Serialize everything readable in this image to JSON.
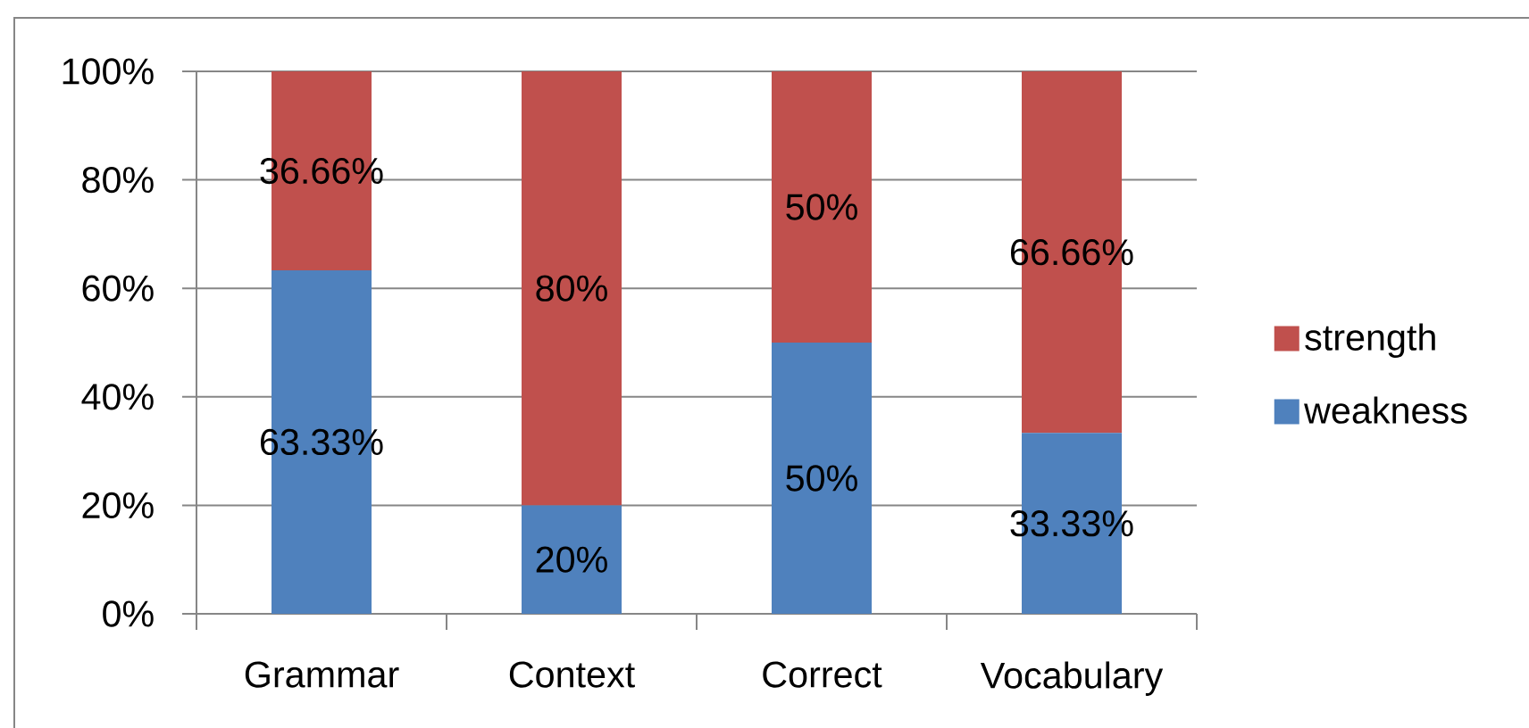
{
  "chart_data": {
    "type": "bar",
    "stacked": true,
    "categories": [
      "Grammar",
      "Context",
      "Correct",
      "Vocabulary"
    ],
    "series": [
      {
        "name": "weakness",
        "color": "#4f81bd",
        "values": [
          63.33,
          20,
          50,
          33.33
        ],
        "value_labels": [
          "63.33%",
          "20%",
          "50%",
          "33.33%"
        ]
      },
      {
        "name": "strength",
        "color": "#c0504d",
        "values": [
          36.66,
          80,
          50,
          66.66
        ],
        "value_labels": [
          "36.66%",
          "80%",
          "50%",
          "66.66%"
        ]
      }
    ],
    "ylim": [
      0,
      100
    ],
    "yticks": [
      {
        "value": 0,
        "label": "0%"
      },
      {
        "value": 20,
        "label": "20%"
      },
      {
        "value": 40,
        "label": "40%"
      },
      {
        "value": 60,
        "label": "60%"
      },
      {
        "value": 80,
        "label": "80%"
      },
      {
        "value": 100,
        "label": "100%"
      }
    ],
    "grid": "y",
    "legend": "right"
  }
}
